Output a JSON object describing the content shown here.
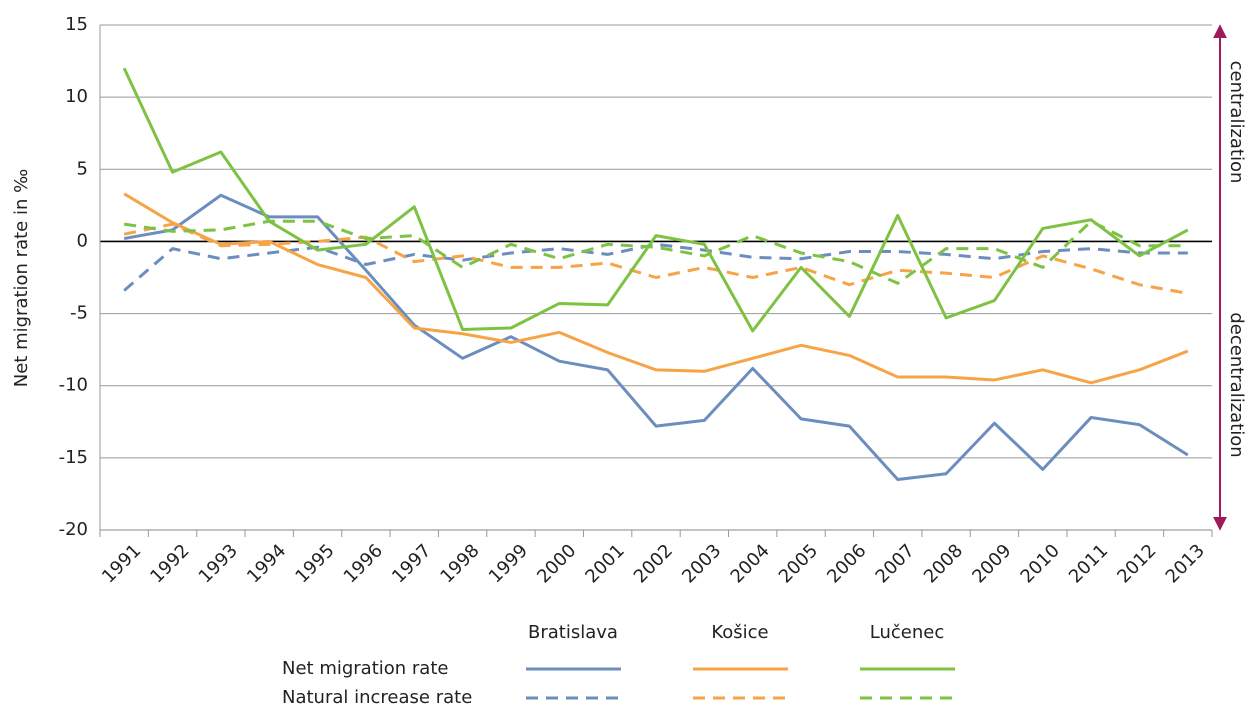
{
  "chart_data": {
    "type": "line",
    "y_label": "Net migration rate in ‰",
    "annotations": [
      "centralization",
      "decentralization"
    ],
    "categories": [
      "1991",
      "1992",
      "1993",
      "1994",
      "1995",
      "1996",
      "1997",
      "1998",
      "1999",
      "2000",
      "2001",
      "2002",
      "2003",
      "2004",
      "2005",
      "2006",
      "2007",
      "2008",
      "2009",
      "2010",
      "2011",
      "2012",
      "2013"
    ],
    "row_labels": [
      "Net migration rate",
      "Natural increase rate"
    ],
    "series": [
      {
        "name": "Bratislava",
        "color": "#6b8ebf",
        "values": [
          0.2,
          0.8,
          3.2,
          1.7,
          1.7,
          -2.0,
          -5.8,
          -8.1,
          -6.6,
          -8.3,
          -8.9,
          -12.8,
          -12.4,
          -8.8,
          -12.3,
          -12.8,
          -16.5,
          -16.1,
          -12.6,
          -15.8,
          -12.2,
          -12.7,
          -14.8
        ],
        "natural_increase": [
          -3.4,
          -0.5,
          -1.2,
          -0.8,
          -0.4,
          -1.6,
          -0.9,
          -1.3,
          -0.8,
          -0.5,
          -0.9,
          -0.2,
          -0.6,
          -1.1,
          -1.2,
          -0.7,
          -0.7,
          -0.9,
          -1.2,
          -0.7,
          -0.5,
          -0.8,
          -0.8
        ]
      },
      {
        "name": "Košice",
        "color": "#f7a347",
        "values": [
          3.3,
          1.3,
          -0.2,
          0.0,
          -1.6,
          -2.5,
          -6.0,
          -6.4,
          -7.0,
          -6.3,
          -7.7,
          -8.9,
          -9.0,
          -8.1,
          -7.2,
          -7.9,
          -9.4,
          -9.4,
          -9.6,
          -8.9,
          -9.8,
          -8.9,
          -7.6
        ],
        "natural_increase": [
          0.5,
          1.2,
          -0.3,
          -0.2,
          0.0,
          0.3,
          -1.4,
          -1.0,
          -1.8,
          -1.8,
          -1.5,
          -2.5,
          -1.8,
          -2.5,
          -1.8,
          -3.0,
          -2.0,
          -2.2,
          -2.5,
          -1.0,
          -1.9,
          -3.0,
          -3.6
        ]
      },
      {
        "name": "Lučenec",
        "color": "#7dc242",
        "values": [
          12.0,
          4.8,
          6.2,
          1.4,
          -0.6,
          -0.2,
          2.4,
          -6.1,
          -6.0,
          -4.3,
          -4.4,
          0.4,
          -0.2,
          -6.2,
          -1.8,
          -5.2,
          1.8,
          -5.3,
          -4.1,
          0.9,
          1.5,
          -1.0,
          0.8
        ],
        "natural_increase": [
          1.2,
          0.7,
          0.8,
          1.4,
          1.4,
          0.2,
          0.4,
          -1.8,
          -0.2,
          -1.2,
          -0.2,
          -0.4,
          -1.0,
          0.4,
          -0.8,
          -1.4,
          -2.9,
          -0.5,
          -0.5,
          -1.8,
          1.4,
          -0.3,
          -0.3
        ]
      }
    ],
    "ylim": [
      -20,
      15
    ],
    "yticks": [
      -20,
      -15,
      -10,
      -5,
      0,
      5,
      10,
      15
    ],
    "grid": true,
    "arrow_color": "#a0195a"
  }
}
